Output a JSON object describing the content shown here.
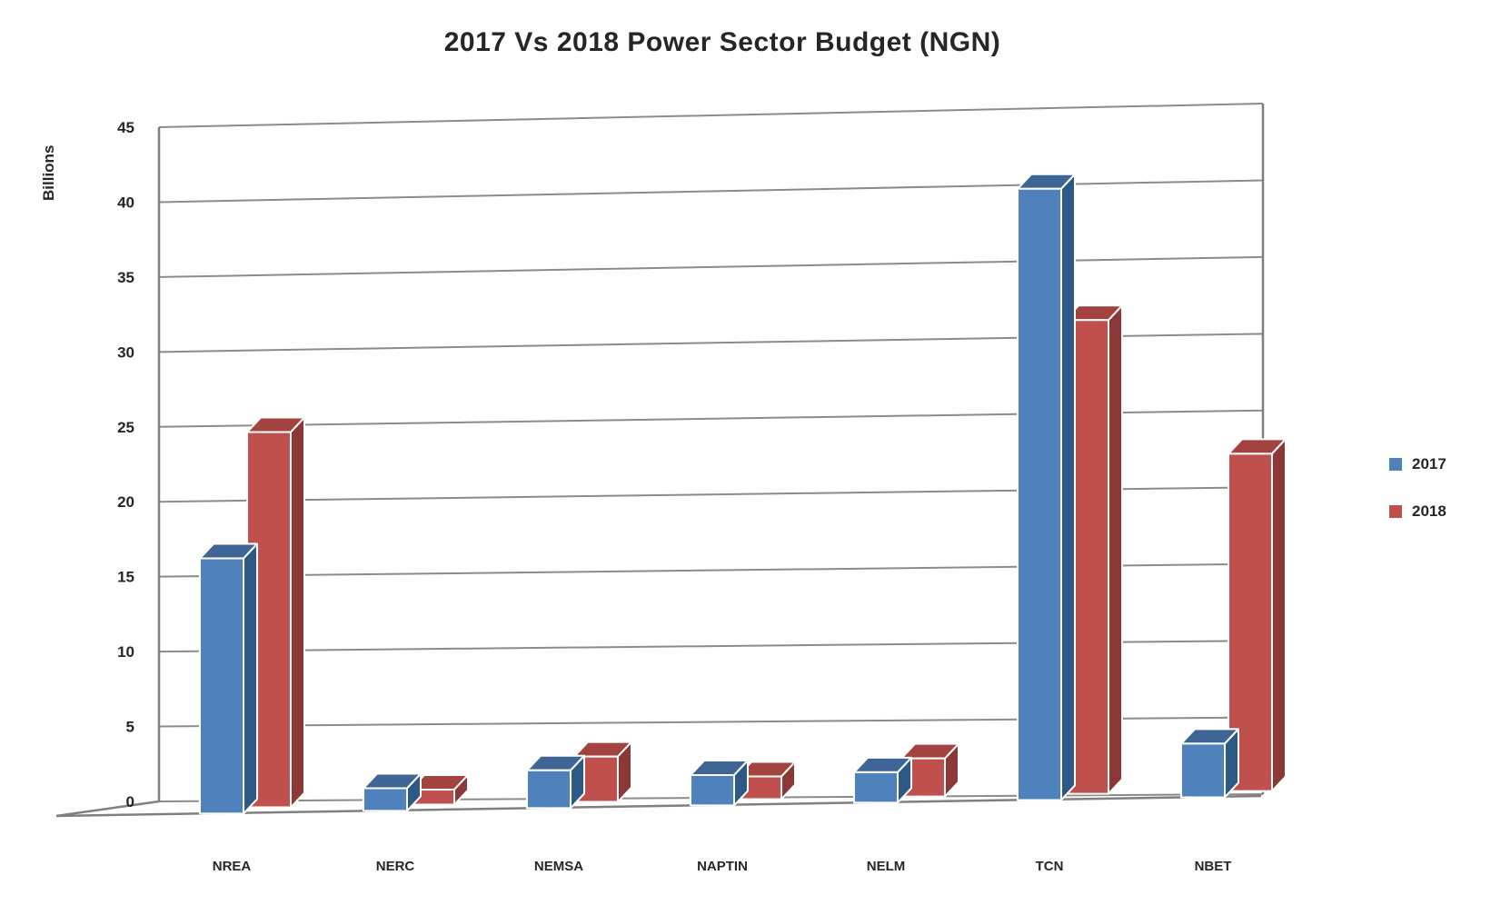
{
  "title": "2017 Vs 2018 Power Sector Budget (NGN)",
  "y_axis_title": "Billions",
  "chart_data": {
    "type": "bar",
    "style": "3d-clustered-column",
    "title": "2017 Vs 2018 Power Sector Budget (NGN)",
    "xlabel": "",
    "ylabel": "Billions",
    "categories": [
      "NREA",
      "NERC",
      "NEMSA",
      "NAPTIN",
      "NELM",
      "TCN",
      "NBET"
    ],
    "series": [
      {
        "name": "2017",
        "color": "#4F81BD",
        "color_top": "#3E6596",
        "color_side": "#2E5984",
        "values": [
          17,
          1.5,
          2.5,
          2,
          2,
          40,
          3.5
        ]
      },
      {
        "name": "2018",
        "color": "#C0504D",
        "color_top": "#A34340",
        "color_side": "#8C3836",
        "values": [
          25,
          1,
          3,
          1.5,
          2.5,
          31,
          22
        ]
      }
    ],
    "ylim": [
      0,
      45
    ],
    "ytick_step": 5,
    "ytick_labels": [
      "0",
      "5",
      "10",
      "15",
      "20",
      "25",
      "30",
      "35",
      "40",
      "45"
    ],
    "grid": true,
    "legend_position": "right",
    "colors": {
      "grid": "#8B8B8B",
      "axis": "#7F7F7F",
      "text": "#262626",
      "background": "#FFFFFF",
      "bar_outline": "#FFFFFF"
    }
  }
}
